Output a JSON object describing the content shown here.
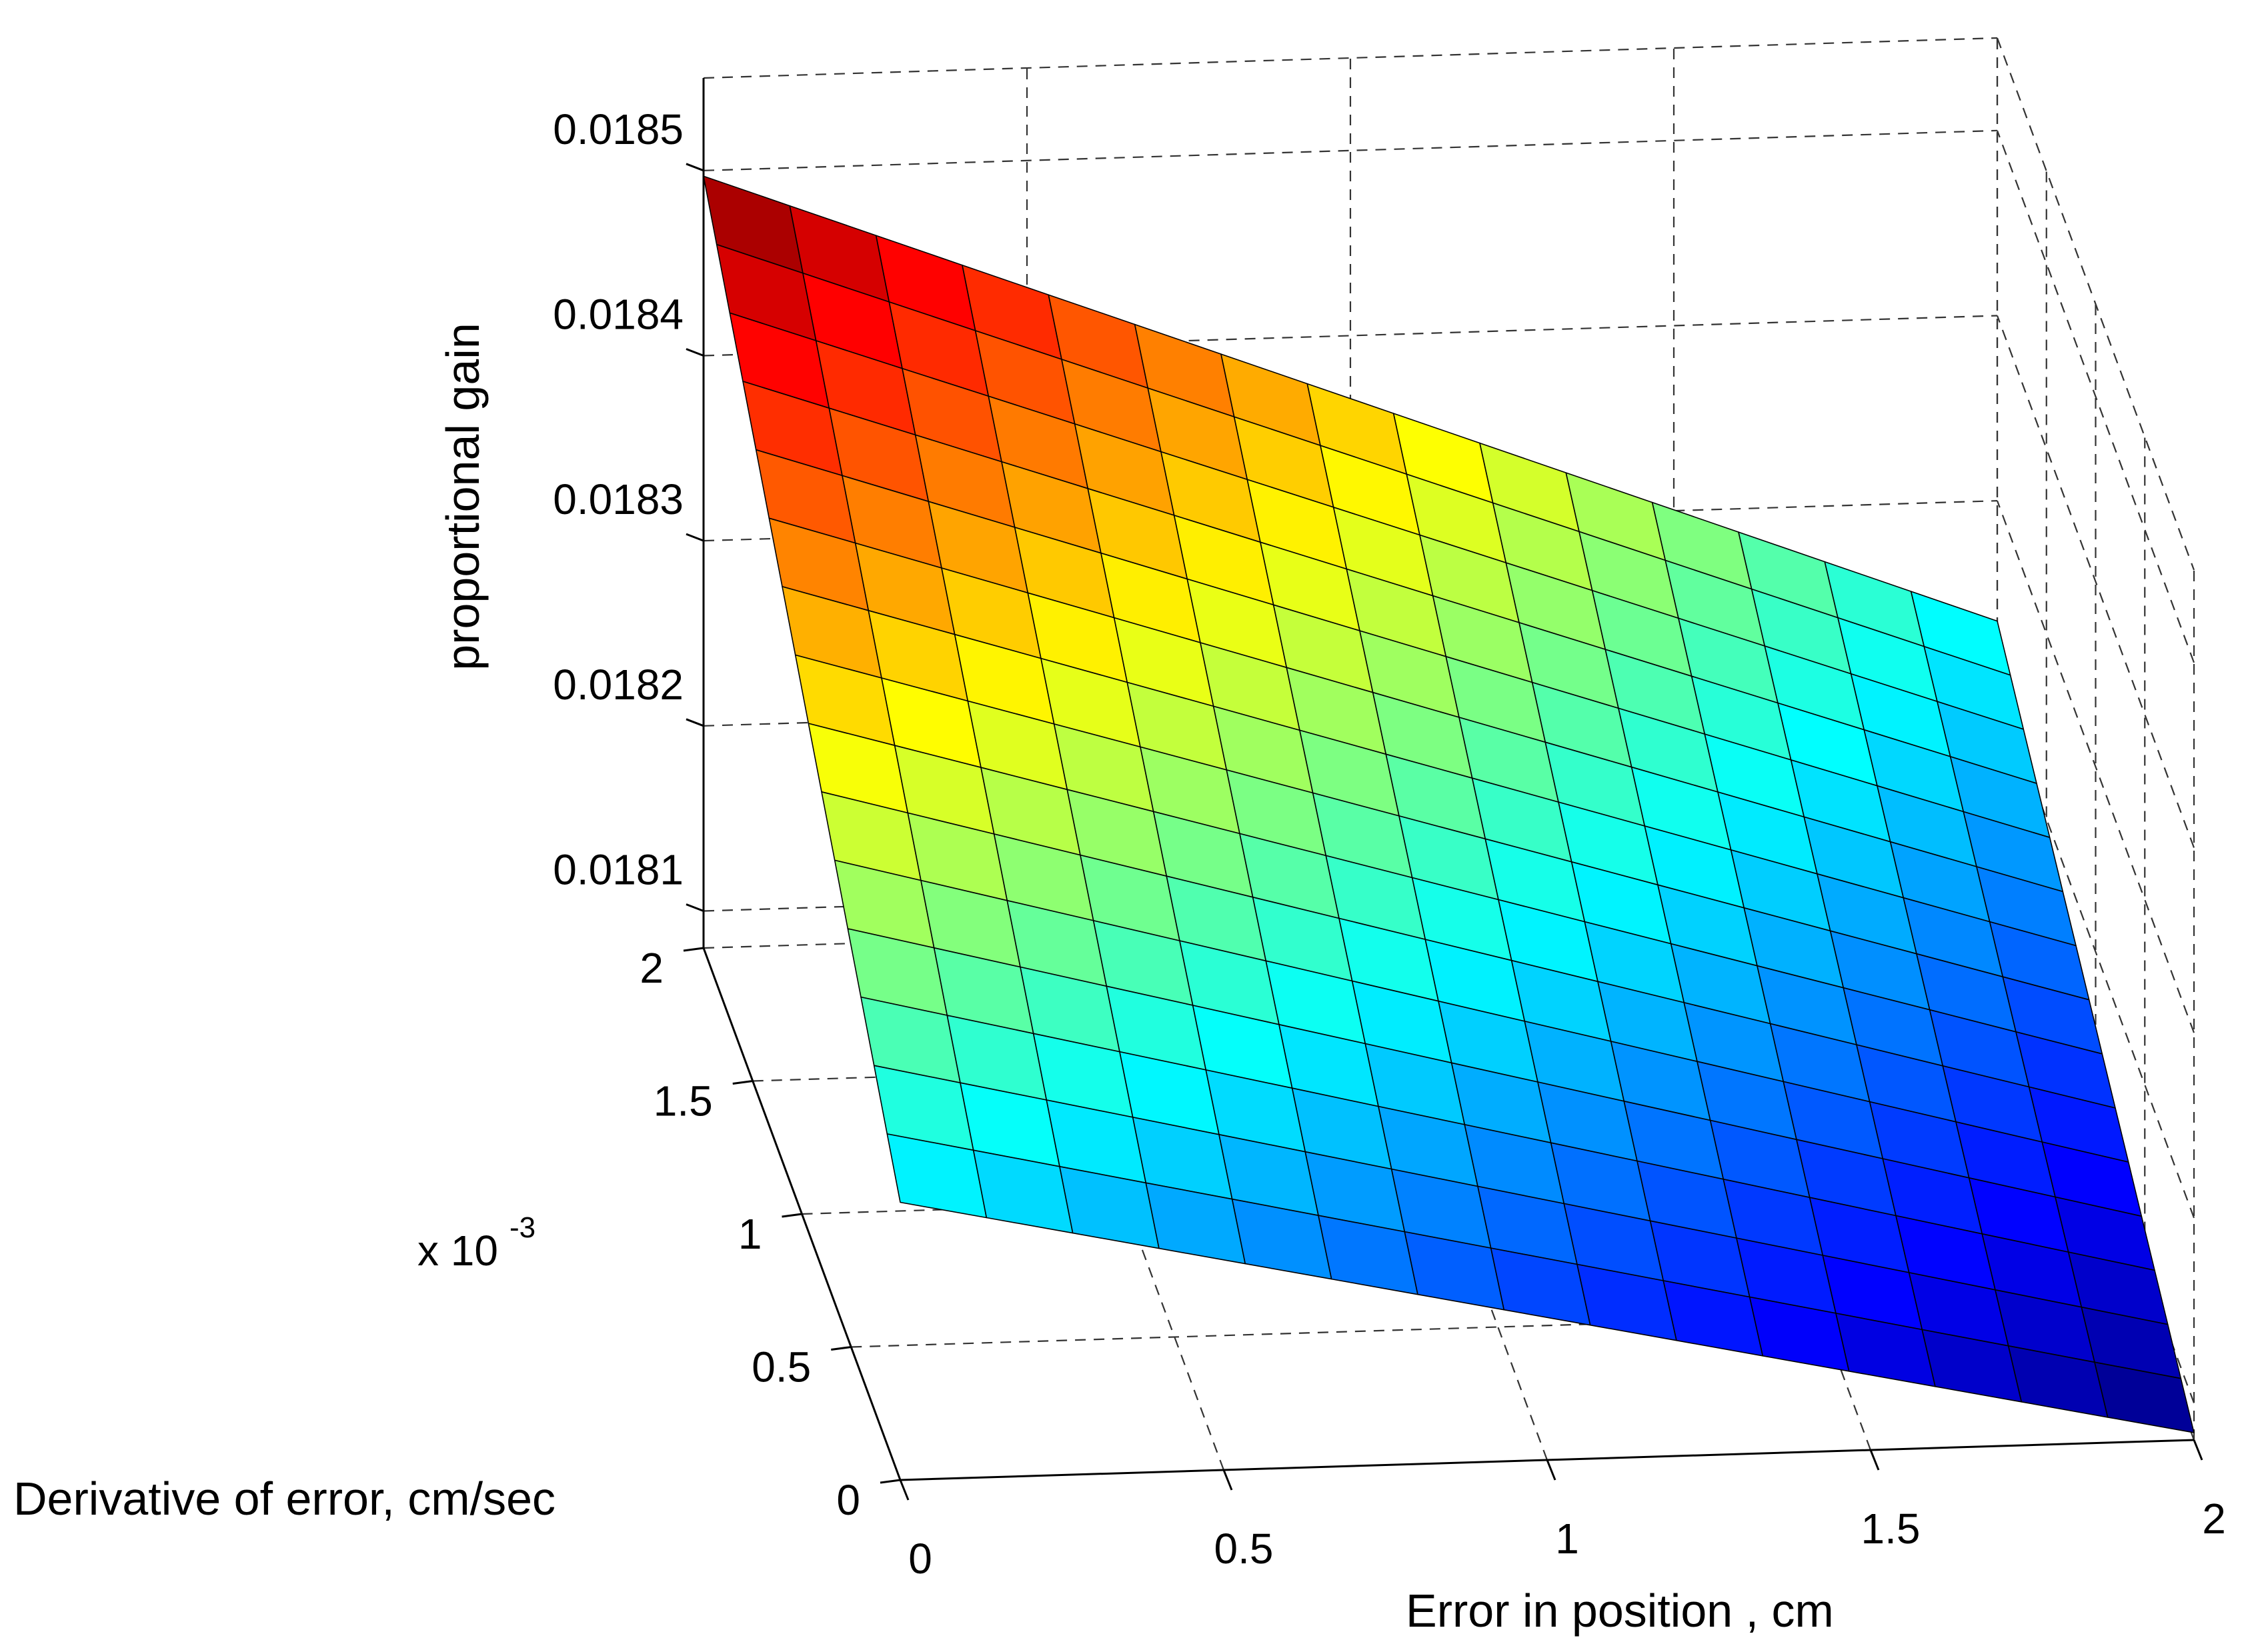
{
  "chart_data": {
    "type": "surface",
    "xlabel": "Error in position , cm",
    "ylabel": "Derivative of error, cm/sec",
    "zlabel": "proportional gain",
    "xlim": [
      0,
      2
    ],
    "ylim": [
      0,
      0.002
    ],
    "zlim": [
      0.01808,
      0.01855
    ],
    "x_ticks": [
      "0",
      "0.5",
      "1",
      "1.5",
      "2"
    ],
    "y_ticks": [
      "0",
      "0.5",
      "1",
      "1.5",
      "2"
    ],
    "y_tick_values": [
      0,
      0.0005,
      0.001,
      0.0015,
      0.002
    ],
    "y_multiplier_base": "x 10",
    "y_multiplier_exponent": "-3",
    "z_ticks": [
      "0.0181",
      "0.0182",
      "0.0183",
      "0.0184",
      "0.0185"
    ],
    "z_tick_values": [
      0.0181,
      0.0182,
      0.0183,
      0.0184,
      0.0185
    ],
    "grid": true,
    "colormap": "jet",
    "grid_x_count": 15,
    "grid_y_count": 15,
    "surface_corners": {
      "x0_y0": 0.01823,
      "x0_y2": 0.018497,
      "x2_y0": 0.018084,
      "x2_y2": 0.018235
    }
  }
}
